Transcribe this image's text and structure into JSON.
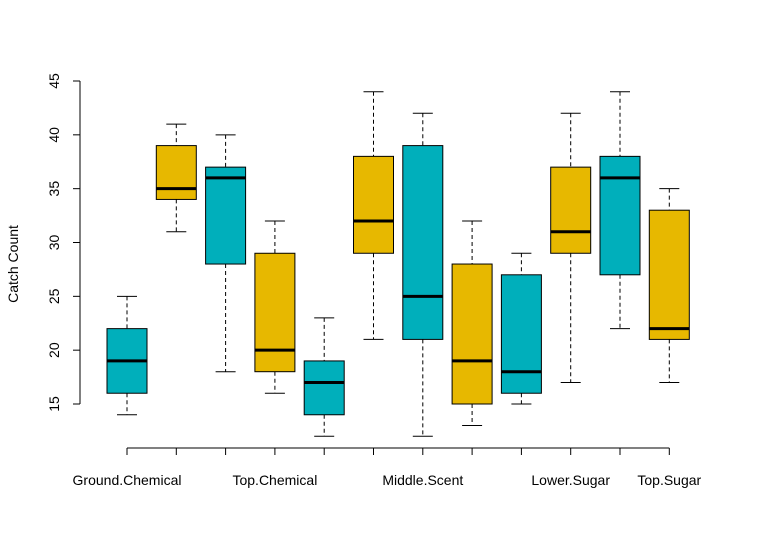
{
  "chart_data": {
    "type": "boxplot",
    "title": "",
    "xlabel": "",
    "ylabel": "Catch Count",
    "ylim": [
      12,
      45
    ],
    "yticks": [
      15,
      20,
      25,
      30,
      35,
      40,
      45
    ],
    "x_tick_labels": [
      {
        "position": 1,
        "label": "Ground.Chemical"
      },
      {
        "position": 4,
        "label": "Top.Chemical"
      },
      {
        "position": 7,
        "label": "Middle.Scent"
      },
      {
        "position": 10,
        "label": "Lower.Sugar"
      },
      {
        "position": 12,
        "label": "Top.Sugar"
      }
    ],
    "colors": {
      "teal": "#00AFBB",
      "gold": "#E7B800"
    },
    "boxes": [
      {
        "position": 1,
        "color": "teal",
        "whisker_low": 14,
        "q1": 16,
        "median": 19,
        "q3": 22,
        "whisker_high": 25
      },
      {
        "position": 2,
        "color": "gold",
        "whisker_low": 31,
        "q1": 34,
        "median": 35,
        "q3": 39,
        "whisker_high": 41
      },
      {
        "position": 3,
        "color": "teal",
        "whisker_low": 18,
        "q1": 28,
        "median": 36,
        "q3": 37,
        "whisker_high": 40
      },
      {
        "position": 4,
        "color": "gold",
        "whisker_low": 16,
        "q1": 18,
        "median": 20,
        "q3": 29,
        "whisker_high": 32
      },
      {
        "position": 5,
        "color": "teal",
        "whisker_low": 12,
        "q1": 14,
        "median": 17,
        "q3": 19,
        "whisker_high": 23
      },
      {
        "position": 6,
        "color": "gold",
        "whisker_low": 21,
        "q1": 29,
        "median": 32,
        "q3": 38,
        "whisker_high": 44
      },
      {
        "position": 7,
        "color": "teal",
        "whisker_low": 12,
        "q1": 21,
        "median": 25,
        "q3": 39,
        "whisker_high": 42
      },
      {
        "position": 8,
        "color": "gold",
        "whisker_low": 13,
        "q1": 15,
        "median": 19,
        "q3": 28,
        "whisker_high": 32
      },
      {
        "position": 9,
        "color": "teal",
        "whisker_low": 15,
        "q1": 16,
        "median": 18,
        "q3": 27,
        "whisker_high": 29
      },
      {
        "position": 10,
        "color": "gold",
        "whisker_low": 17,
        "q1": 29,
        "median": 31,
        "q3": 37,
        "whisker_high": 42
      },
      {
        "position": 11,
        "color": "teal",
        "whisker_low": 22,
        "q1": 27,
        "median": 36,
        "q3": 38,
        "whisker_high": 44
      },
      {
        "position": 12,
        "color": "gold",
        "whisker_low": 17,
        "q1": 21,
        "median": 22,
        "q3": 33,
        "whisker_high": 35
      }
    ]
  }
}
